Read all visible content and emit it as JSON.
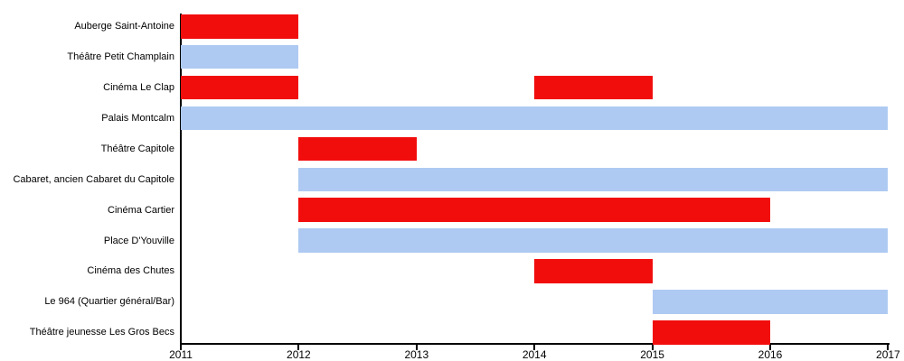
{
  "chart_data": {
    "type": "bar",
    "subtype": "gantt-timeline",
    "title": "",
    "xlabel": "",
    "ylabel": "",
    "grid": false,
    "legend": false,
    "x_axis": {
      "min": 2011,
      "max": 2017,
      "ticks": [
        "2011",
        "2012",
        "2013",
        "2014",
        "2015",
        "2016",
        "2017"
      ]
    },
    "rows": [
      {
        "label": "Auberge Saint-Antoine",
        "segments": [
          {
            "start": 2011,
            "end": 2012,
            "color": "red"
          }
        ]
      },
      {
        "label": "Théâtre Petit Champlain",
        "segments": [
          {
            "start": 2011,
            "end": 2012,
            "color": "blue"
          }
        ]
      },
      {
        "label": "Cinéma Le Clap",
        "segments": [
          {
            "start": 2011,
            "end": 2012,
            "color": "red"
          },
          {
            "start": 2014,
            "end": 2015,
            "color": "red"
          }
        ]
      },
      {
        "label": "Palais Montcalm",
        "segments": [
          {
            "start": 2011,
            "end": 2017,
            "color": "blue"
          }
        ]
      },
      {
        "label": "Théâtre Capitole",
        "segments": [
          {
            "start": 2012,
            "end": 2013,
            "color": "red"
          }
        ]
      },
      {
        "label": "Cabaret, ancien Cabaret du Capitole",
        "segments": [
          {
            "start": 2012,
            "end": 2017,
            "color": "blue"
          }
        ]
      },
      {
        "label": "Cinéma Cartier",
        "segments": [
          {
            "start": 2012,
            "end": 2016,
            "color": "red"
          }
        ]
      },
      {
        "label": "Place D'Youville",
        "segments": [
          {
            "start": 2012,
            "end": 2017,
            "color": "blue"
          }
        ]
      },
      {
        "label": "Cinéma des Chutes",
        "segments": [
          {
            "start": 2014,
            "end": 2015,
            "color": "red"
          }
        ]
      },
      {
        "label": "Le 964 (Quartier général/Bar)",
        "segments": [
          {
            "start": 2015,
            "end": 2017,
            "color": "blue"
          }
        ]
      },
      {
        "label": "Théâtre jeunesse Les Gros Becs",
        "segments": [
          {
            "start": 2015,
            "end": 2016,
            "color": "red"
          }
        ]
      }
    ],
    "palette": {
      "red": "#f20d0d",
      "blue": "#aecaf2",
      "axis": "#000000",
      "text": "#000000"
    }
  }
}
